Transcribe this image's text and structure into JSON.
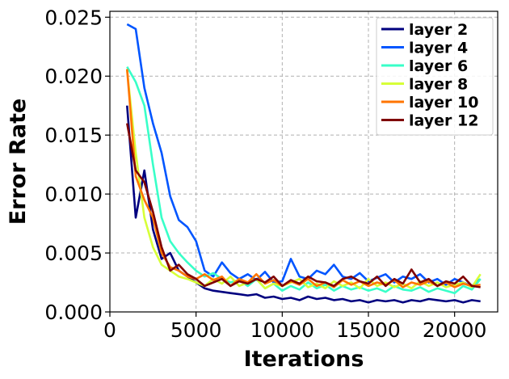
{
  "chart_data": {
    "type": "line",
    "title": "",
    "xlabel": "Iterations",
    "ylabel": "Error Rate",
    "xlim": [
      0,
      22500
    ],
    "ylim": [
      0.0,
      0.0255
    ],
    "xticks": [
      0,
      5000,
      10000,
      15000,
      20000
    ],
    "xtick_labels": [
      "0",
      "5000",
      "10000",
      "15000",
      "20000"
    ],
    "yticks": [
      0.0,
      0.005,
      0.01,
      0.015,
      0.02,
      0.025
    ],
    "ytick_labels": [
      "0.000",
      "0.005",
      "0.010",
      "0.015",
      "0.020",
      "0.025"
    ],
    "grid": true,
    "legend_position": "top-right",
    "x": [
      1000,
      1500,
      2000,
      2500,
      3000,
      3500,
      4000,
      4500,
      5000,
      5500,
      6000,
      6500,
      7000,
      7500,
      8000,
      8500,
      9000,
      9500,
      10000,
      10500,
      11000,
      11500,
      12000,
      12500,
      13000,
      13500,
      14000,
      14500,
      15000,
      15500,
      16000,
      16500,
      17000,
      17500,
      18000,
      18500,
      19000,
      19500,
      20000,
      20500,
      21000,
      21500
    ],
    "series": [
      {
        "name": "layer 2",
        "color": "#00007f",
        "values": [
          0.0175,
          0.008,
          0.012,
          0.007,
          0.0045,
          0.005,
          0.0035,
          0.003,
          0.0025,
          0.002,
          0.0018,
          0.0017,
          0.0016,
          0.0015,
          0.0014,
          0.0015,
          0.0012,
          0.0013,
          0.0011,
          0.0012,
          0.001,
          0.0013,
          0.0011,
          0.0012,
          0.001,
          0.0011,
          0.0009,
          0.001,
          0.0008,
          0.001,
          0.0009,
          0.001,
          0.0008,
          0.001,
          0.0009,
          0.0011,
          0.001,
          0.0009,
          0.001,
          0.0008,
          0.001,
          0.0009
        ]
      },
      {
        "name": "layer 4",
        "color": "#0055ff",
        "values": [
          0.0244,
          0.024,
          0.019,
          0.016,
          0.0135,
          0.0098,
          0.0078,
          0.0072,
          0.006,
          0.0035,
          0.003,
          0.0042,
          0.0033,
          0.0028,
          0.0032,
          0.0027,
          0.0034,
          0.0025,
          0.0026,
          0.0045,
          0.003,
          0.0028,
          0.0035,
          0.0032,
          0.004,
          0.003,
          0.0028,
          0.0033,
          0.0026,
          0.0029,
          0.0032,
          0.0025,
          0.003,
          0.0028,
          0.0032,
          0.0025,
          0.0028,
          0.0023,
          0.0028,
          0.0025,
          0.0022,
          0.0028
        ]
      },
      {
        "name": "layer 6",
        "color": "#38ffc8",
        "values": [
          0.0208,
          0.0195,
          0.0175,
          0.0125,
          0.008,
          0.006,
          0.005,
          0.0042,
          0.0035,
          0.003,
          0.0033,
          0.0028,
          0.0025,
          0.0027,
          0.0022,
          0.0028,
          0.002,
          0.0024,
          0.0018,
          0.0022,
          0.0019,
          0.0025,
          0.002,
          0.0023,
          0.0018,
          0.0022,
          0.0019,
          0.0021,
          0.0018,
          0.002,
          0.0017,
          0.0022,
          0.0019,
          0.0018,
          0.0021,
          0.0017,
          0.002,
          0.0018,
          0.0016,
          0.0022,
          0.0019,
          0.0028
        ]
      },
      {
        "name": "layer 8",
        "color": "#d7ff38",
        "values": [
          0.0205,
          0.0135,
          0.008,
          0.0055,
          0.004,
          0.0035,
          0.003,
          0.0028,
          0.0025,
          0.0022,
          0.0028,
          0.0024,
          0.003,
          0.0022,
          0.0025,
          0.0028,
          0.002,
          0.0024,
          0.0022,
          0.0025,
          0.0028,
          0.0021,
          0.0024,
          0.002,
          0.0026,
          0.0022,
          0.0025,
          0.002,
          0.0028,
          0.0022,
          0.0025,
          0.0021,
          0.0024,
          0.002,
          0.0026,
          0.0022,
          0.0025,
          0.0021,
          0.0023,
          0.0025,
          0.0021,
          0.0032
        ]
      },
      {
        "name": "layer 10",
        "color": "#ff7500",
        "values": [
          0.0206,
          0.0115,
          0.0095,
          0.008,
          0.005,
          0.0038,
          0.0035,
          0.003,
          0.0028,
          0.0032,
          0.0027,
          0.003,
          0.0022,
          0.0028,
          0.0025,
          0.0032,
          0.0024,
          0.0027,
          0.0022,
          0.0026,
          0.0023,
          0.0028,
          0.0022,
          0.0025,
          0.0021,
          0.0027,
          0.0023,
          0.0026,
          0.0022,
          0.0025,
          0.0023,
          0.0027,
          0.0021,
          0.0025,
          0.0023,
          0.0026,
          0.0022,
          0.0025,
          0.0021,
          0.0024,
          0.0022,
          0.0023
        ]
      },
      {
        "name": "layer 12",
        "color": "#7f0000",
        "values": [
          0.016,
          0.012,
          0.011,
          0.0085,
          0.0055,
          0.0035,
          0.004,
          0.0032,
          0.0028,
          0.0022,
          0.0025,
          0.0028,
          0.0022,
          0.0026,
          0.0024,
          0.0028,
          0.0025,
          0.003,
          0.0022,
          0.0027,
          0.0024,
          0.003,
          0.0026,
          0.0025,
          0.0022,
          0.0028,
          0.003,
          0.0026,
          0.0024,
          0.003,
          0.0022,
          0.0028,
          0.0024,
          0.0036,
          0.0025,
          0.0028,
          0.0022,
          0.0026,
          0.0024,
          0.003,
          0.0022,
          0.0021
        ]
      }
    ]
  }
}
